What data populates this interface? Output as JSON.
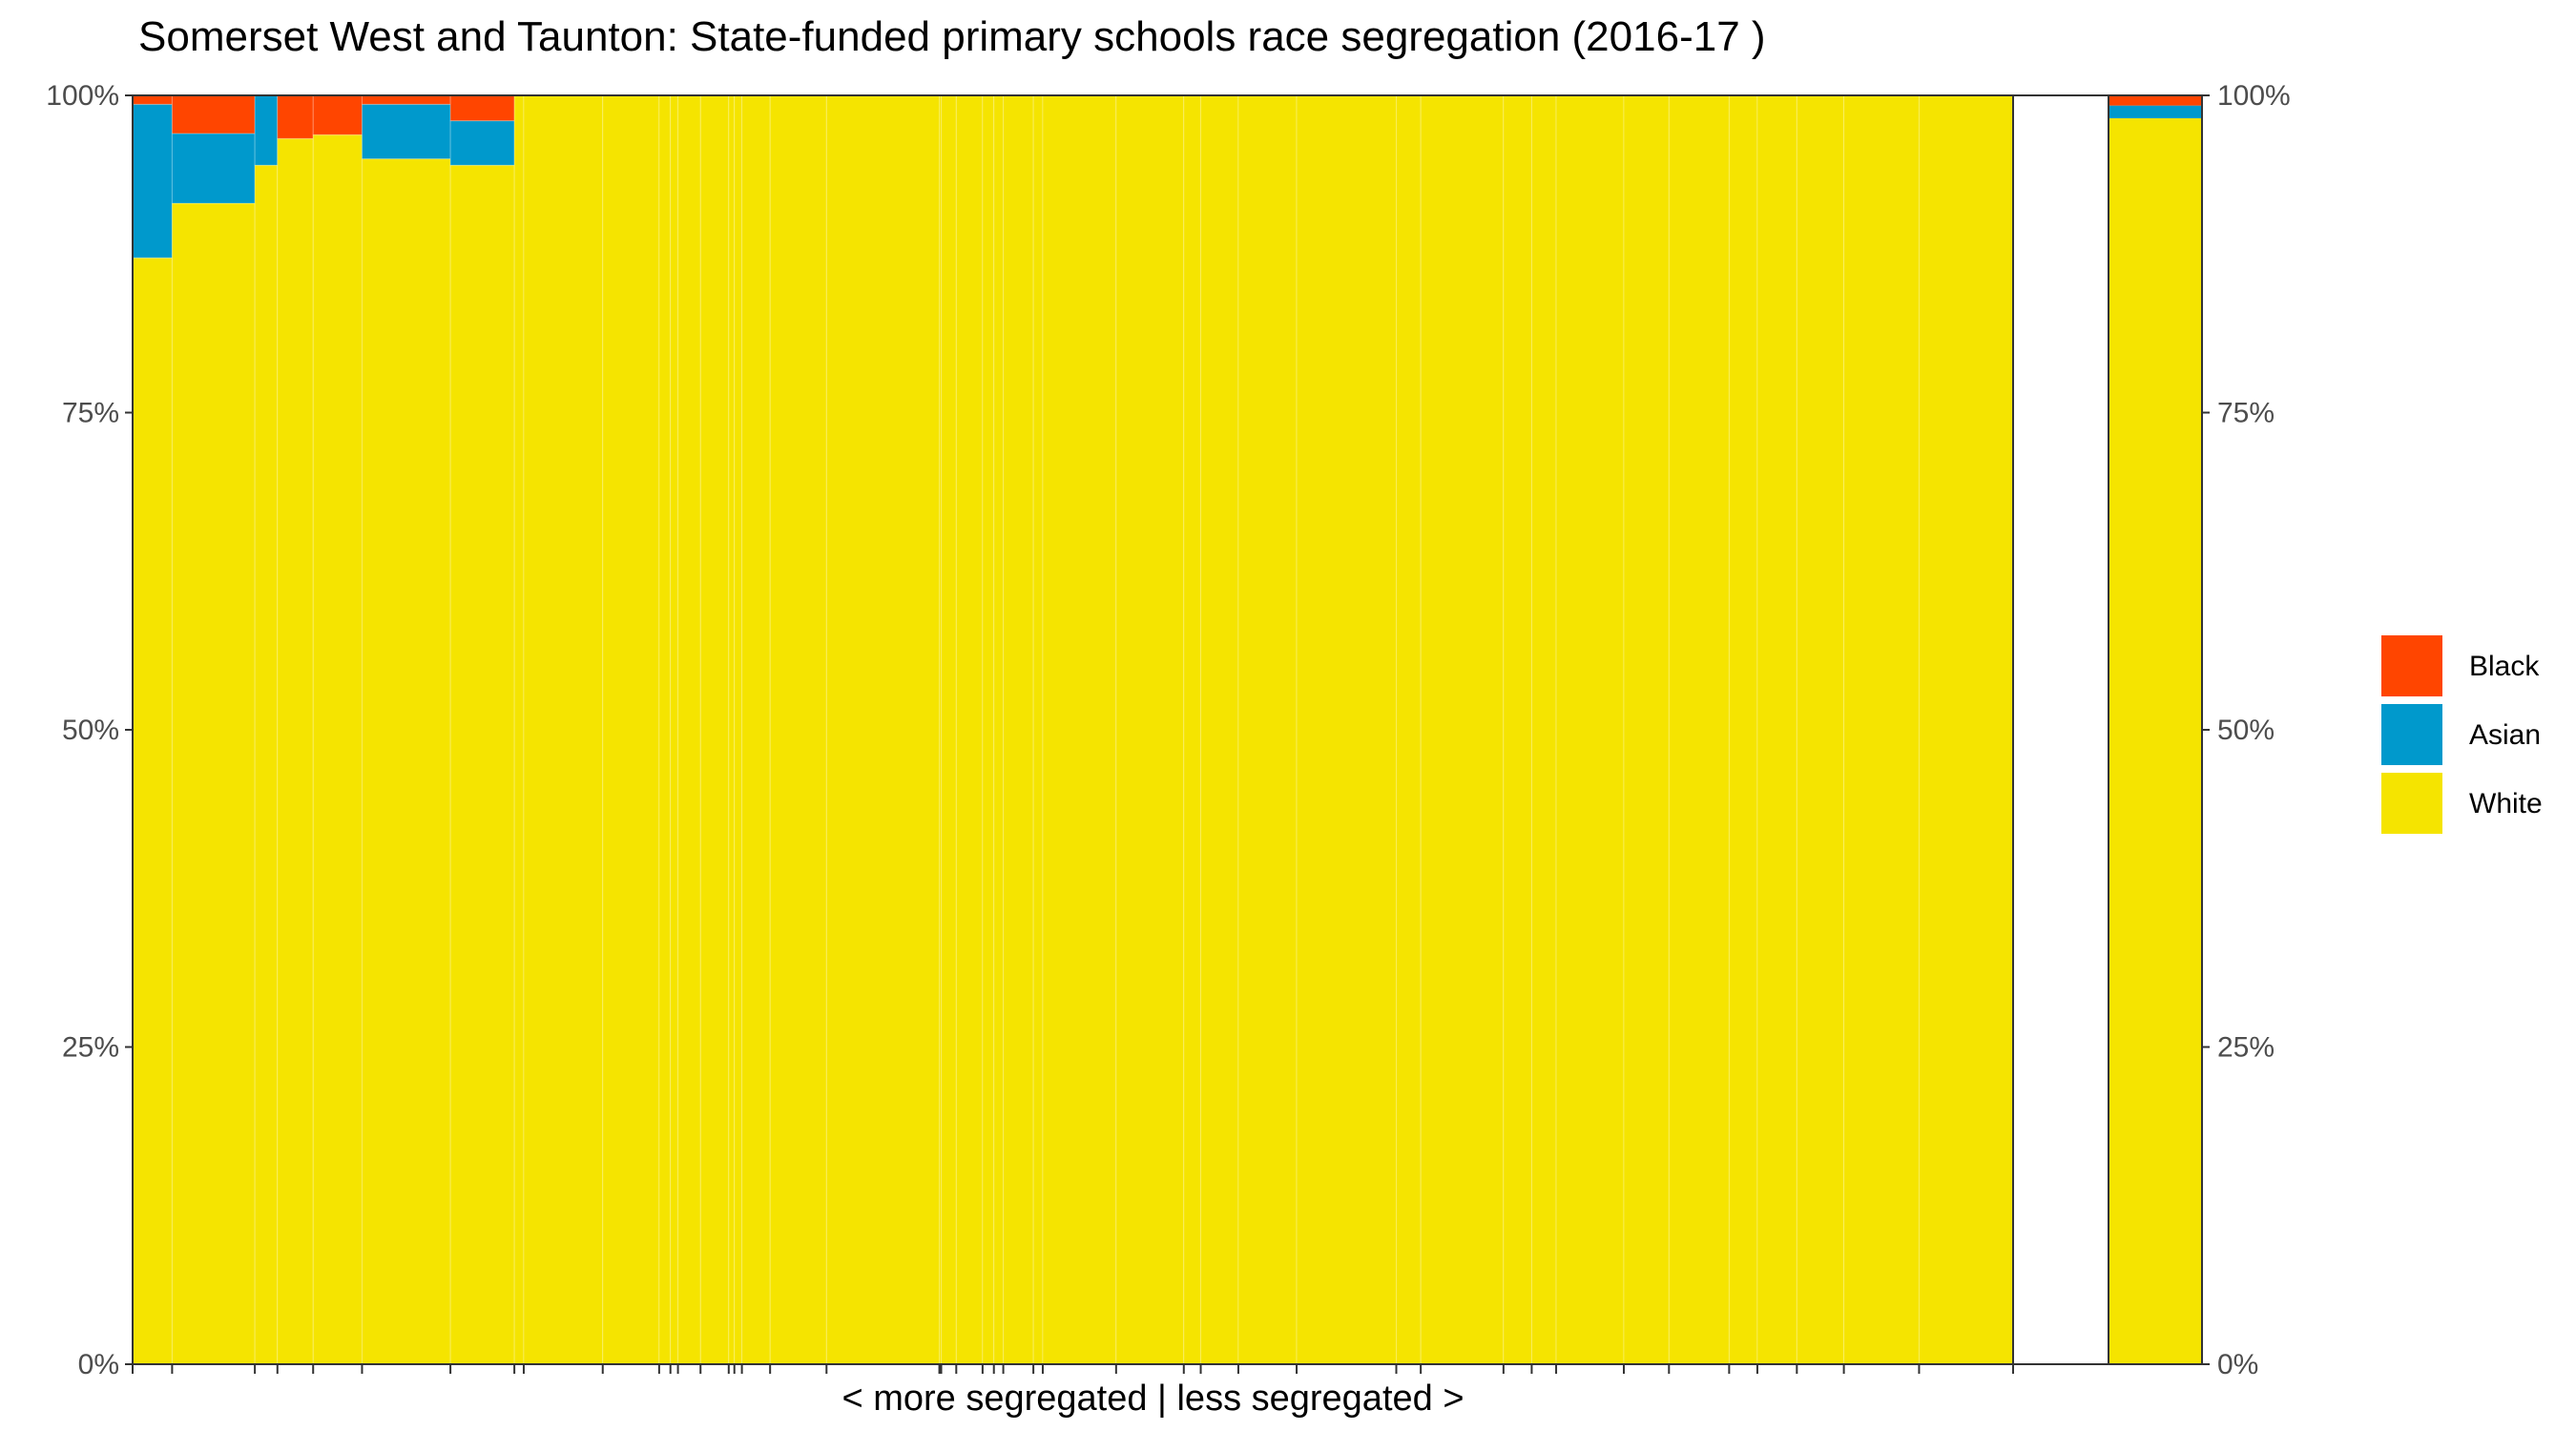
{
  "chart_data": {
    "type": "bar",
    "subtype": "stacked-100-percent, variable-width columns",
    "title": "Somerset West and Taunton: State-funded primary schools race segregation (2016-17 )",
    "xlabel": "< more segregated | less segregated >",
    "ylabel": "",
    "ylim": [
      0,
      1
    ],
    "y_ticks": [
      "0%",
      "25%",
      "50%",
      "75%",
      "100%"
    ],
    "y_tick_values": [
      0,
      0.25,
      0.5,
      0.75,
      1.0
    ],
    "grid": false,
    "secondary_y_axis": true,
    "legend": {
      "position": "right",
      "entries": [
        {
          "name": "Black",
          "color": "#FF4500"
        },
        {
          "name": "Asian",
          "color": "#0099CC"
        },
        {
          "name": "White",
          "color": "#F5E400"
        }
      ]
    },
    "stack_order_bottom_to_top": [
      "White",
      "Asian",
      "Black"
    ],
    "x_extent": [
      0,
      1000
    ],
    "x_ticks": [
      0,
      21,
      65,
      77,
      96,
      122,
      169,
      203,
      208,
      250,
      280,
      286,
      290,
      302,
      317,
      320,
      324,
      339,
      369,
      429,
      430,
      438,
      452,
      458,
      463,
      479,
      484,
      523,
      559,
      568,
      588,
      619,
      672,
      685,
      729,
      744,
      757,
      793,
      817,
      849,
      864,
      885,
      910,
      950,
      1000
    ],
    "schools": [
      {
        "x0": 0,
        "x1": 21,
        "white": 0.872,
        "asian": 0.121,
        "black": 0.007
      },
      {
        "x0": 21,
        "x1": 65,
        "white": 0.915,
        "asian": 0.055,
        "black": 0.03
      },
      {
        "x0": 65,
        "x1": 77,
        "white": 0.945,
        "asian": 0.055,
        "black": 0.0
      },
      {
        "x0": 77,
        "x1": 96,
        "white": 0.966,
        "asian": 0.0,
        "black": 0.034
      },
      {
        "x0": 96,
        "x1": 122,
        "white": 0.969,
        "asian": 0.0,
        "black": 0.031
      },
      {
        "x0": 122,
        "x1": 169,
        "white": 0.95,
        "asian": 0.043,
        "black": 0.007
      },
      {
        "x0": 169,
        "x1": 203,
        "white": 0.945,
        "asian": 0.035,
        "black": 0.02
      },
      {
        "x0": 203,
        "x1": 208,
        "white": 1.0,
        "asian": 0.0,
        "black": 0.0
      },
      {
        "x0": 208,
        "x1": 250,
        "white": 1.0,
        "asian": 0.0,
        "black": 0.0
      },
      {
        "x0": 250,
        "x1": 280,
        "white": 1.0,
        "asian": 0.0,
        "black": 0.0
      },
      {
        "x0": 280,
        "x1": 286,
        "white": 1.0,
        "asian": 0.0,
        "black": 0.0
      },
      {
        "x0": 286,
        "x1": 290,
        "white": 1.0,
        "asian": 0.0,
        "black": 0.0
      },
      {
        "x0": 290,
        "x1": 302,
        "white": 1.0,
        "asian": 0.0,
        "black": 0.0
      },
      {
        "x0": 302,
        "x1": 317,
        "white": 1.0,
        "asian": 0.0,
        "black": 0.0
      },
      {
        "x0": 317,
        "x1": 320,
        "white": 1.0,
        "asian": 0.0,
        "black": 0.0
      },
      {
        "x0": 320,
        "x1": 324,
        "white": 1.0,
        "asian": 0.0,
        "black": 0.0
      },
      {
        "x0": 324,
        "x1": 339,
        "white": 1.0,
        "asian": 0.0,
        "black": 0.0
      },
      {
        "x0": 339,
        "x1": 369,
        "white": 1.0,
        "asian": 0.0,
        "black": 0.0
      },
      {
        "x0": 369,
        "x1": 429,
        "white": 1.0,
        "asian": 0.0,
        "black": 0.0
      },
      {
        "x0": 429,
        "x1": 430,
        "white": 1.0,
        "asian": 0.0,
        "black": 0.0
      },
      {
        "x0": 430,
        "x1": 438,
        "white": 1.0,
        "asian": 0.0,
        "black": 0.0
      },
      {
        "x0": 438,
        "x1": 452,
        "white": 1.0,
        "asian": 0.0,
        "black": 0.0
      },
      {
        "x0": 452,
        "x1": 458,
        "white": 1.0,
        "asian": 0.0,
        "black": 0.0
      },
      {
        "x0": 458,
        "x1": 463,
        "white": 1.0,
        "asian": 0.0,
        "black": 0.0
      },
      {
        "x0": 463,
        "x1": 479,
        "white": 1.0,
        "asian": 0.0,
        "black": 0.0
      },
      {
        "x0": 479,
        "x1": 484,
        "white": 1.0,
        "asian": 0.0,
        "black": 0.0
      },
      {
        "x0": 484,
        "x1": 523,
        "white": 1.0,
        "asian": 0.0,
        "black": 0.0
      },
      {
        "x0": 523,
        "x1": 559,
        "white": 1.0,
        "asian": 0.0,
        "black": 0.0
      },
      {
        "x0": 559,
        "x1": 568,
        "white": 1.0,
        "asian": 0.0,
        "black": 0.0
      },
      {
        "x0": 568,
        "x1": 588,
        "white": 1.0,
        "asian": 0.0,
        "black": 0.0
      },
      {
        "x0": 588,
        "x1": 619,
        "white": 1.0,
        "asian": 0.0,
        "black": 0.0
      },
      {
        "x0": 619,
        "x1": 672,
        "white": 1.0,
        "asian": 0.0,
        "black": 0.0
      },
      {
        "x0": 672,
        "x1": 685,
        "white": 1.0,
        "asian": 0.0,
        "black": 0.0
      },
      {
        "x0": 685,
        "x1": 729,
        "white": 1.0,
        "asian": 0.0,
        "black": 0.0
      },
      {
        "x0": 729,
        "x1": 744,
        "white": 1.0,
        "asian": 0.0,
        "black": 0.0
      },
      {
        "x0": 744,
        "x1": 757,
        "white": 1.0,
        "asian": 0.0,
        "black": 0.0
      },
      {
        "x0": 757,
        "x1": 793,
        "white": 1.0,
        "asian": 0.0,
        "black": 0.0
      },
      {
        "x0": 793,
        "x1": 817,
        "white": 1.0,
        "asian": 0.0,
        "black": 0.0
      },
      {
        "x0": 817,
        "x1": 849,
        "white": 1.0,
        "asian": 0.0,
        "black": 0.0
      },
      {
        "x0": 849,
        "x1": 864,
        "white": 1.0,
        "asian": 0.0,
        "black": 0.0
      },
      {
        "x0": 864,
        "x1": 885,
        "white": 1.0,
        "asian": 0.0,
        "black": 0.0
      },
      {
        "x0": 885,
        "x1": 910,
        "white": 1.0,
        "asian": 0.0,
        "black": 0.0
      },
      {
        "x0": 910,
        "x1": 950,
        "white": 1.0,
        "asian": 0.0,
        "black": 0.0
      },
      {
        "x0": 950,
        "x1": 1000,
        "white": 1.0,
        "asian": 0.0,
        "black": 0.0
      }
    ],
    "overall": {
      "white": 0.982,
      "asian": 0.01,
      "black": 0.008
    }
  }
}
